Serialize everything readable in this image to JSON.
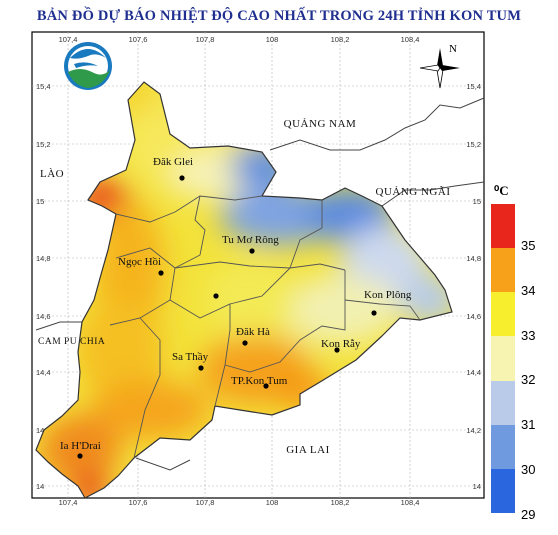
{
  "title": "BẢN ĐỒ DỰ BÁO NHIỆT ĐỘ CAO NHẤT TRONG 24H TỈNH KON TUM",
  "axes": {
    "lon_top": [
      "107,4",
      "107,6",
      "107,8",
      "108",
      "108,2",
      "108,4"
    ],
    "lon_bottom": [
      "107,4",
      "107,6",
      "107,8",
      "108",
      "108,2",
      "108,4"
    ],
    "lat_left": [
      "15,4",
      "15,2",
      "15",
      "14,8",
      "14,6",
      "14,4",
      "14,2",
      "14"
    ],
    "lat_right": [
      "15,4",
      "15,2",
      "15",
      "14,8",
      "14,6",
      "14,4",
      "14,2",
      "14"
    ]
  },
  "neighbors": {
    "quang_nam": "QUẢNG NAM",
    "quang_ngai": "QUẢNG NGÃI",
    "lao": "LÀO",
    "cambodia": "CAM PU CHIA",
    "gia_lai": "GIA LAI"
  },
  "places": {
    "dak_glei": "Đăk Glei",
    "tu_mo_rong": "Tu Mơ Rông",
    "ngoc_hoi": "Ngọc Hồi",
    "kon_plong": "Kon Plông",
    "dak_ha": "Đăk Hà",
    "kon_ray": "Kon Rẫy",
    "sa_thay": "Sa Thầy",
    "tp_kon_tum": "TP.Kon Tum",
    "ia_h_drai": "Ia H'Drai"
  },
  "compass_north": "N",
  "legend": {
    "unit": "⁰C",
    "labels": [
      "35",
      "34",
      "33",
      "32",
      "31",
      "30",
      "29"
    ],
    "colors": [
      "#e8261c",
      "#f7a11a",
      "#f7ee2d",
      "#f6f4b0",
      "#b9cbe8",
      "#6f9ae0",
      "#2a67de"
    ]
  }
}
